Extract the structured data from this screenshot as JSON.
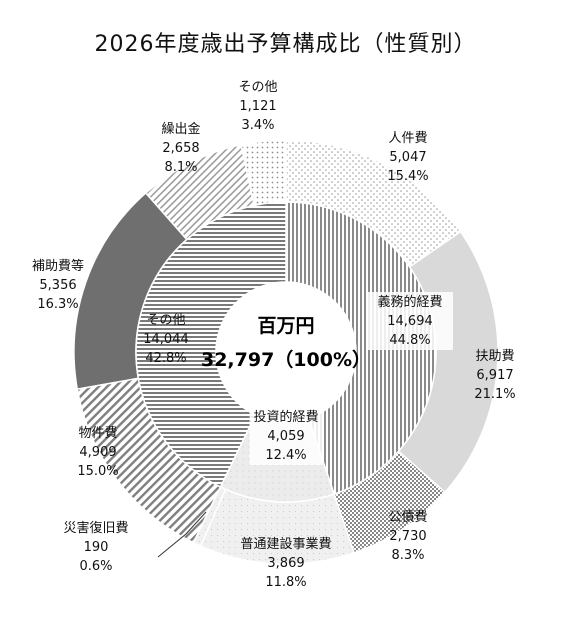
{
  "chart_data": {
    "type": "donut",
    "title": "2026年度歳出予算構成比（性質別）",
    "center": {
      "title": "百万円",
      "total": "32,797（100%）"
    },
    "inner_ring": [
      {
        "name": "義務的経費",
        "value": "14,694",
        "percent": "44.8%",
        "pattern": "vlines"
      },
      {
        "name": "投資的経費",
        "value": "4,059",
        "percent": "12.4%",
        "pattern": "light"
      },
      {
        "name": "その他",
        "value": "14,044",
        "percent": "42.8%",
        "pattern": "hlines"
      }
    ],
    "outer_ring": [
      {
        "name": "人件費",
        "value": "5,047",
        "percent": "15.4%",
        "pattern": "dots"
      },
      {
        "name": "扶助費",
        "value": "6,917",
        "percent": "21.1%",
        "pattern": "gray"
      },
      {
        "name": "公債費",
        "value": "2,730",
        "percent": "8.3%",
        "pattern": "checker"
      },
      {
        "name": "普通建設事業費",
        "value": "3,869",
        "percent": "11.8%",
        "pattern": "light2"
      },
      {
        "name": "災害復旧費",
        "value": "190",
        "percent": "0.6%",
        "pattern": "light2"
      },
      {
        "name": "物件費",
        "value": "4,909",
        "percent": "15.0%",
        "pattern": "diag"
      },
      {
        "name": "補助費等",
        "value": "5,356",
        "percent": "16.3%",
        "pattern": "dark"
      },
      {
        "name": "繰出金",
        "value": "2,658",
        "percent": "8.1%",
        "pattern": "diag2"
      },
      {
        "name": "その他",
        "value": "1,121",
        "percent": "3.4%",
        "pattern": "dots2"
      }
    ]
  }
}
